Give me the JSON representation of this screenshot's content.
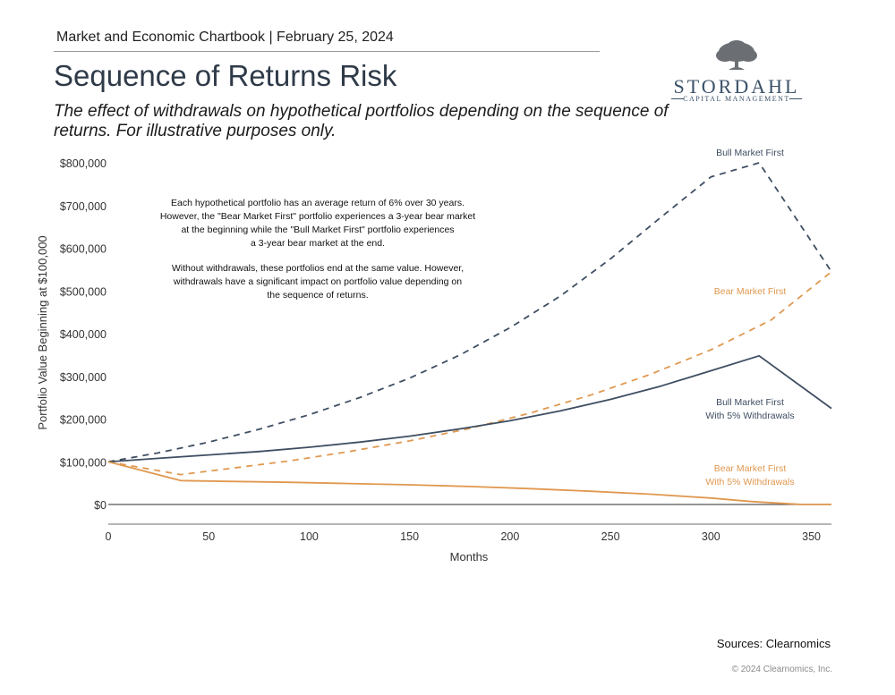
{
  "header": {
    "chartbook_line": "Market and Economic Chartbook | February 25, 2024",
    "title": "Sequence of Returns Risk",
    "subtitle": "The effect of withdrawals on hypothetical portfolios depending on the sequence of returns. For illustrative purposes only."
  },
  "logo": {
    "name": "STORDAHL",
    "tagline": "CAPITAL MANAGEMENT",
    "icon": "tree-icon"
  },
  "colors": {
    "navy": "#3e4e62",
    "orange": "#e0984f",
    "axis": "#6b6b6b",
    "zero_line": "#555555"
  },
  "annotation": {
    "lines": [
      "Each hypothetical portfolio has an average return of 6% over 30 years.",
      "However, the \"Bear Market First\" portfolio experiences a 3-year bear market",
      "at the beginning while the \"Bull Market First\" portfolio experiences",
      "a 3-year bear market at the end.",
      "",
      "Without withdrawals, these portfolios end at the same value. However,",
      "withdrawals have a significant impact on portfolio value depending on",
      "the sequence of returns."
    ]
  },
  "chart_data": {
    "type": "line",
    "xlabel": "Months",
    "ylabel": "Portfolio Value Beginning at $100,000",
    "xlim": [
      0,
      360
    ],
    "ylim": [
      0,
      800000
    ],
    "x_ticks": [
      0,
      50,
      100,
      150,
      200,
      250,
      300,
      350
    ],
    "y_ticks": [
      0,
      100000,
      200000,
      300000,
      400000,
      500000,
      600000,
      700000,
      800000
    ],
    "y_tick_labels": [
      "$0",
      "$100,000",
      "$200,000",
      "$300,000",
      "$400,000",
      "$500,000",
      "$600,000",
      "$700,000",
      "$800,000"
    ],
    "grid": false,
    "series": [
      {
        "name": "Bull Market First",
        "color": "navy",
        "dashed": true,
        "x": [
          0,
          25,
          50,
          75,
          100,
          125,
          150,
          175,
          200,
          225,
          250,
          275,
          300,
          324,
          360
        ],
        "values": [
          100000,
          121000,
          146000,
          176000,
          210000,
          250000,
          296000,
          350000,
          414000,
          488000,
          575000,
          672000,
          767000,
          800000,
          545000
        ]
      },
      {
        "name": "Bear Market First",
        "color": "orange",
        "dashed": true,
        "x": [
          0,
          36,
          60,
          90,
          120,
          150,
          180,
          210,
          240,
          270,
          300,
          330,
          360
        ],
        "values": [
          100000,
          70000,
          84000,
          102000,
          124000,
          149000,
          178000,
          214000,
          256000,
          305000,
          362000,
          432000,
          545000
        ]
      },
      {
        "name": "Bull Market First With 5% Withdrawals",
        "color": "navy",
        "dashed": false,
        "x": [
          0,
          25,
          50,
          75,
          100,
          125,
          150,
          175,
          200,
          225,
          250,
          275,
          300,
          324,
          360
        ],
        "values": [
          100000,
          108000,
          116000,
          124000,
          134000,
          146000,
          160000,
          177000,
          196000,
          219000,
          246000,
          277000,
          313000,
          348000,
          225000
        ]
      },
      {
        "name": "Bear Market First With 5% Withdrawals",
        "color": "orange",
        "dashed": false,
        "x": [
          0,
          36,
          60,
          90,
          120,
          150,
          180,
          210,
          240,
          270,
          300,
          320,
          345,
          360
        ],
        "values": [
          100000,
          56000,
          54000,
          52000,
          49000,
          46000,
          42000,
          37000,
          31000,
          24000,
          15000,
          7000,
          0,
          0
        ]
      }
    ]
  },
  "series_labels": {
    "bull": "Bull Market First",
    "bear": "Bear Market First",
    "bull_w_line1": "Bull Market First",
    "bull_w_line2": "With 5% Withdrawals",
    "bear_w_line1": "Bear Market First",
    "bear_w_line2": "With 5% Withdrawals"
  },
  "footer": {
    "source": "Sources: Clearnomics",
    "copyright": "© 2024 Clearnomics, Inc."
  }
}
